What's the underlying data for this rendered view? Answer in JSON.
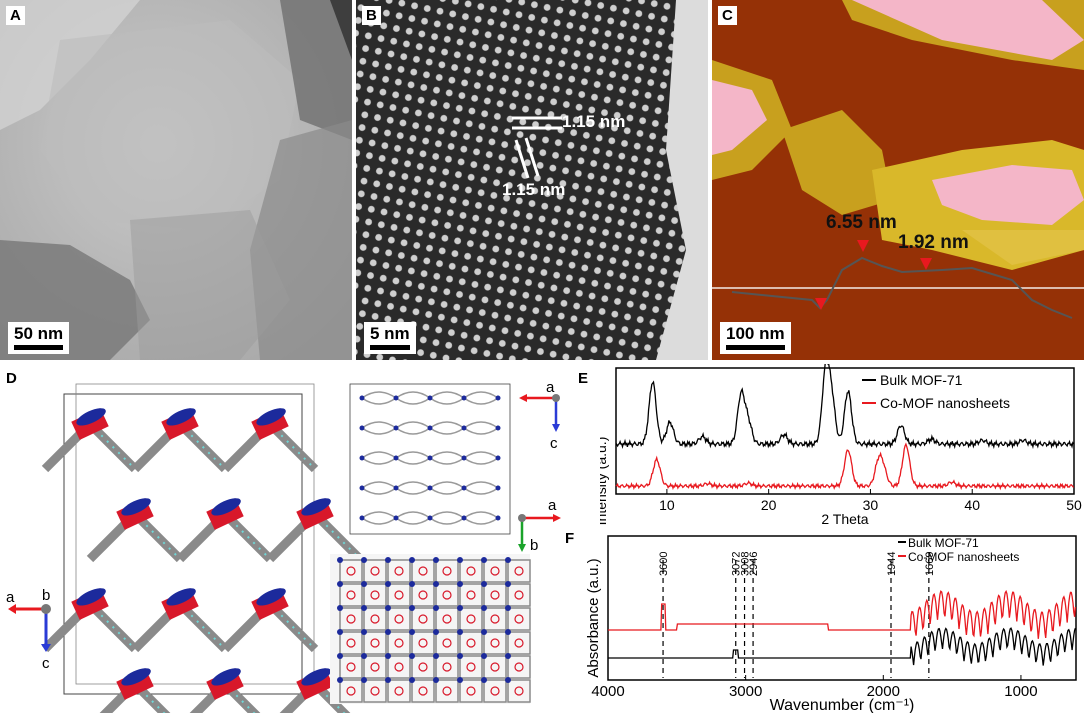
{
  "panels": {
    "a": {
      "label": "A",
      "scale": "50 nm"
    },
    "b": {
      "label": "B",
      "scale": "5 nm",
      "spacing_h": "1.15 nm",
      "spacing_d": "1.15 nm"
    },
    "c": {
      "label": "C",
      "scale": "100 nm",
      "height1": "6.55 nm",
      "height2": "1.92 nm"
    },
    "d": {
      "label": "D",
      "axis_a": "a",
      "axis_b": "b",
      "axis_c": "c"
    },
    "e_inset": {
      "axis_a1": "a",
      "axis_c1": "c",
      "axis_a2": "a",
      "axis_b2": "b"
    }
  },
  "colors": {
    "bulk": "#000000",
    "nanosheet": "#e8191f",
    "afm_high": "#f4b6c8",
    "afm_low": "#8b2a08",
    "atom_blue": "#1c2a9c",
    "atom_red": "#d8182a",
    "atom_cyan": "#6fd6d6"
  },
  "chart_data": [
    {
      "type": "line",
      "label": "E",
      "xlabel": "2 Theta",
      "ylabel": "Intensity (a.u.)",
      "xlim": [
        5,
        50
      ],
      "xticks": [
        10,
        20,
        30,
        40,
        50
      ],
      "legend": "top-right",
      "series": [
        {
          "name": "Bulk MOF-71",
          "color": "#000000",
          "peaks": [
            [
              8.6,
              1.0
            ],
            [
              10.3,
              0.35
            ],
            [
              13.5,
              0.12
            ],
            [
              17.3,
              0.8
            ],
            [
              18.0,
              0.35
            ],
            [
              21.5,
              0.15
            ],
            [
              25.6,
              1.15
            ],
            [
              26.2,
              0.7
            ],
            [
              27.8,
              0.85
            ],
            [
              33.0,
              0.3
            ],
            [
              36.0,
              0.08
            ],
            [
              41.0,
              0.06
            ],
            [
              45.0,
              0.06
            ]
          ]
        },
        {
          "name": "Co-MOF nanosheets",
          "color": "#e8191f",
          "peaks": [
            [
              9.0,
              0.55
            ],
            [
              14.0,
              0.05
            ],
            [
              18.0,
              0.06
            ],
            [
              27.8,
              0.75
            ],
            [
              30.8,
              0.5
            ],
            [
              31.3,
              0.3
            ],
            [
              33.5,
              0.85
            ],
            [
              38.0,
              0.08
            ]
          ]
        }
      ]
    },
    {
      "type": "line",
      "label": "F",
      "xlabel": "Wavenumber (cm⁻¹)",
      "ylabel": "Absorbance (a.u.)",
      "xlim": [
        4000,
        600
      ],
      "xticks": [
        4000,
        3000,
        2000,
        1000
      ],
      "legend": "top-right",
      "markers": [
        3600,
        3072,
        3008,
        2946,
        1944,
        1669
      ],
      "series": [
        {
          "name": "Bulk MOF-71",
          "color": "#000000"
        },
        {
          "name": "Co-MOF nanosheets",
          "color": "#e8191f"
        }
      ]
    }
  ]
}
